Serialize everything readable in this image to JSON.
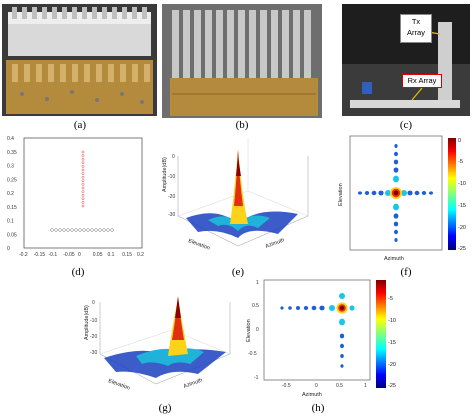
{
  "captions": {
    "a": "(a)",
    "b": "(b)",
    "c": "(c)",
    "d": "(d)",
    "e": "(e)",
    "f": "(f)",
    "g": "(g)",
    "h": "(h)"
  },
  "photo_c": {
    "tx_label": "Tx\nArray",
    "rx_label": "Rx Array"
  },
  "plot_d": {
    "x_ticks": [
      "-0.2",
      "-0.15",
      "-0.1",
      "-0.05",
      "0",
      "0.05",
      "0.1",
      "0.15",
      "0.2"
    ],
    "y_ticks": [
      "0.4",
      "0.35",
      "0.3",
      "0.25",
      "0.2",
      "0.15",
      "0.1",
      "0.05",
      "0"
    ]
  },
  "plot_e": {
    "zlabel": "Amplitude(dB)",
    "xlabel": "Azimuth",
    "ylabel": "Elevation",
    "z_ticks": [
      "0",
      "-10",
      "-20",
      "-30"
    ]
  },
  "plot_f": {
    "xlabel": "Azimuth",
    "ylabel": "Elevation",
    "colorbar_ticks": [
      "0",
      "-5",
      "-10",
      "-15",
      "-20",
      "-25"
    ]
  },
  "plot_g": {
    "zlabel": "Amplitude(dB)",
    "xlabel": "Azimuth",
    "ylabel": "Elevation",
    "z_ticks": [
      "0",
      "-10",
      "-20",
      "-30"
    ]
  },
  "plot_h": {
    "xlabel": "Azimuth",
    "ylabel": "Elevation",
    "colorbar_ticks": [
      "-5",
      "-10",
      "-15",
      "-20",
      "-25"
    ],
    "x_ticks": [
      "-0.5",
      "0",
      "0.5",
      "1"
    ],
    "y_ticks": [
      "1",
      "0.5",
      "0",
      "-0.5",
      "-1"
    ]
  },
  "colors": {
    "jet_top": "#7f0000",
    "jet_bot": "#00007f",
    "board": "#b48a3c"
  }
}
